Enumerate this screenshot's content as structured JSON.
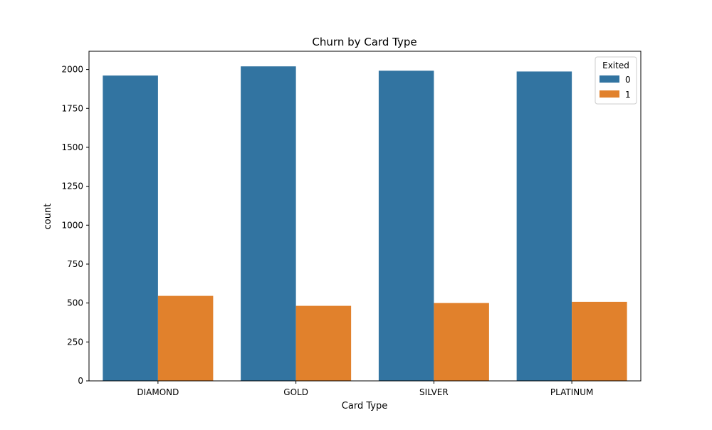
{
  "chart_data": {
    "type": "bar",
    "title": "Churn by Card Type",
    "xlabel": "Card Type",
    "ylabel": "count",
    "categories": [
      "DIAMOND",
      "GOLD",
      "SILVER",
      "PLATINUM"
    ],
    "series": [
      {
        "name": "0",
        "values": [
          1961,
          2020,
          1992,
          1987
        ],
        "color": "#3274a1"
      },
      {
        "name": "1",
        "values": [
          546,
          482,
          500,
          508
        ],
        "color": "#e1812c"
      }
    ],
    "ylim": [
      0,
      2117
    ],
    "yticks": [
      0,
      250,
      500,
      750,
      1000,
      1250,
      1500,
      1750,
      2000
    ],
    "grid": false,
    "legend": {
      "title": "Exited",
      "position": "top-right"
    }
  }
}
